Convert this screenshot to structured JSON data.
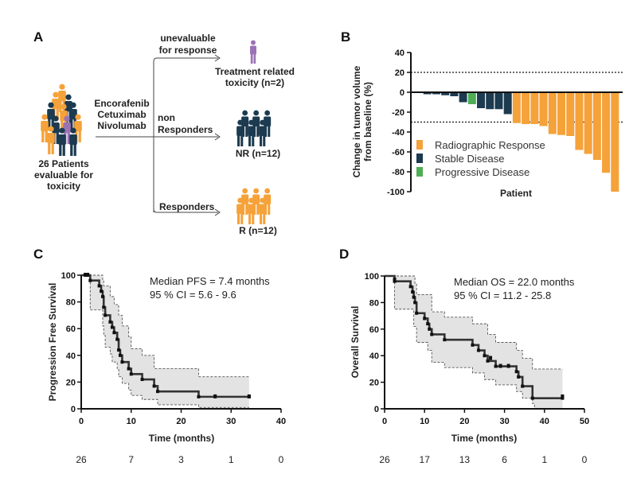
{
  "colors": {
    "orange": "#F5A23A",
    "navy": "#1C3A50",
    "green": "#4FAE55",
    "purple": "#9B73B5",
    "ci_fill": "#E3E3E3"
  },
  "panel_a": {
    "label": "A",
    "left_text": [
      "26 Patients",
      "evaluable for",
      "toxicity"
    ],
    "treatment": [
      "Encorafenib",
      "Cetuximab",
      "Nivolumab"
    ],
    "branch_top": [
      "unevaluable",
      "for response"
    ],
    "branch_mid": [
      "non",
      "Responders"
    ],
    "branch_bottom": "Responders",
    "out_top": [
      "Treatment related",
      "toxicity (n=2)"
    ],
    "out_mid": "NR (n=12)",
    "out_bottom": "R (n=12)",
    "icons": {
      "group": "people-group-icon",
      "tox": "person-icon"
    }
  },
  "chart_data": [
    {
      "panel": "B",
      "type": "bar",
      "ylabel": [
        "Change in tumor volume",
        "from baseline (%)"
      ],
      "xlabel": "Patient",
      "ylim": [
        -100,
        40
      ],
      "yticks": [
        40,
        20,
        0,
        -20,
        -40,
        -60,
        -80,
        -100
      ],
      "reference_lines": [
        20,
        -30
      ],
      "legend": [
        {
          "name": "Radiographic Response",
          "color": "#F5A23A"
        },
        {
          "name": "Stable Disease",
          "color": "#1C3A50"
        },
        {
          "name": "Progressive Disease",
          "color": "#4FAE55"
        }
      ],
      "legend_position": "bottom-left",
      "values": [
        0.5,
        -2,
        -2,
        -3,
        -4,
        -10,
        -12,
        -16,
        -17,
        -17,
        -22,
        -31,
        -32,
        -32,
        -34,
        -42,
        -43,
        -44,
        -58,
        -62,
        -68,
        -81,
        -100
      ],
      "groups": [
        "SD",
        "SD",
        "SD",
        "SD",
        "SD",
        "SD",
        "PD",
        "SD",
        "SD",
        "SD",
        "SD",
        "RR",
        "RR",
        "RR",
        "RR",
        "RR",
        "RR",
        "RR",
        "RR",
        "RR",
        "RR",
        "RR",
        "RR"
      ]
    },
    {
      "panel": "C",
      "type": "line",
      "ylabel": "Progression Free Survival",
      "xlabel": "Time (months)",
      "xlim": [
        0,
        40
      ],
      "ylim": [
        0,
        100
      ],
      "xticks": [
        0,
        10,
        20,
        30,
        40
      ],
      "yticks": [
        0,
        20,
        40,
        60,
        80,
        100
      ],
      "annotation": [
        "Median PFS =  7.4 months",
        "95 % CI = 5.6 - 9.6"
      ],
      "at_risk": [
        "26",
        "7",
        "3",
        "1",
        "0"
      ],
      "survival": [
        [
          0,
          100
        ],
        [
          1.8,
          96
        ],
        [
          3.6,
          92
        ],
        [
          4.0,
          88
        ],
        [
          4.3,
          84
        ],
        [
          4.5,
          76
        ],
        [
          4.8,
          70
        ],
        [
          5.8,
          65
        ],
        [
          6.2,
          61
        ],
        [
          6.6,
          57
        ],
        [
          7.2,
          52
        ],
        [
          7.5,
          44
        ],
        [
          7.8,
          40
        ],
        [
          8.2,
          35
        ],
        [
          9.5,
          30
        ],
        [
          10,
          26
        ],
        [
          12.2,
          22
        ],
        [
          14.6,
          17
        ],
        [
          15.3,
          13
        ],
        [
          23.5,
          9
        ],
        [
          33.6,
          9
        ]
      ],
      "ci_upper": [
        [
          0,
          100
        ],
        [
          3.6,
          100
        ],
        [
          4.3,
          96
        ],
        [
          4.5,
          92
        ],
        [
          5.8,
          84
        ],
        [
          6.6,
          78
        ],
        [
          7.5,
          70
        ],
        [
          8.2,
          62
        ],
        [
          9.5,
          54
        ],
        [
          10,
          45
        ],
        [
          12.2,
          40
        ],
        [
          14.6,
          30
        ],
        [
          23.5,
          24
        ],
        [
          33.6,
          24
        ]
      ],
      "ci_lower": [
        [
          0,
          100
        ],
        [
          1.8,
          74
        ],
        [
          3.6,
          74
        ],
        [
          4.3,
          62
        ],
        [
          4.5,
          55
        ],
        [
          4.8,
          46
        ],
        [
          5.8,
          41
        ],
        [
          6.2,
          35
        ],
        [
          7.2,
          30
        ],
        [
          7.5,
          24
        ],
        [
          8.2,
          19
        ],
        [
          9.5,
          14
        ],
        [
          10,
          10
        ],
        [
          12.2,
          7
        ],
        [
          15.3,
          3
        ],
        [
          23.5,
          1
        ],
        [
          33.6,
          1
        ]
      ],
      "censored": [
        [
          0.8,
          100
        ],
        [
          1.3,
          100
        ],
        [
          26.8,
          9
        ],
        [
          33.6,
          9
        ]
      ]
    },
    {
      "panel": "D",
      "type": "line",
      "ylabel": "Overall Survival",
      "xlabel": "Time (months)",
      "xlim": [
        0,
        50
      ],
      "ylim": [
        0,
        100
      ],
      "xticks": [
        0,
        10,
        20,
        30,
        40,
        50
      ],
      "yticks": [
        0,
        20,
        40,
        60,
        80,
        100
      ],
      "annotation": [
        "Median OS = 22.0 months",
        "95 % CI = 11.2 - 25.8"
      ],
      "at_risk": [
        "26",
        "17",
        "13",
        "6",
        "1",
        "0"
      ],
      "survival": [
        [
          0,
          100
        ],
        [
          2.5,
          96
        ],
        [
          6.5,
          92
        ],
        [
          7,
          88
        ],
        [
          7.3,
          84
        ],
        [
          7.6,
          80
        ],
        [
          8,
          72
        ],
        [
          10,
          68
        ],
        [
          10.8,
          64
        ],
        [
          11.2,
          60
        ],
        [
          11.8,
          56
        ],
        [
          15,
          52
        ],
        [
          22,
          48
        ],
        [
          23.5,
          44
        ],
        [
          25,
          40
        ],
        [
          25.8,
          36
        ],
        [
          27.8,
          32
        ],
        [
          33,
          28
        ],
        [
          33.5,
          24
        ],
        [
          34.5,
          17
        ],
        [
          37,
          8
        ],
        [
          44.5,
          8
        ]
      ],
      "ci_upper": [
        [
          0,
          100
        ],
        [
          6.5,
          100
        ],
        [
          7.6,
          94
        ],
        [
          8,
          86
        ],
        [
          11.8,
          73
        ],
        [
          15,
          69
        ],
        [
          22,
          64
        ],
        [
          25.8,
          56
        ],
        [
          27.8,
          50
        ],
        [
          33,
          44
        ],
        [
          34.5,
          38
        ],
        [
          37,
          30
        ],
        [
          44.5,
          30
        ]
      ],
      "ci_lower": [
        [
          0,
          100
        ],
        [
          2.5,
          75
        ],
        [
          6.5,
          75
        ],
        [
          7.3,
          62
        ],
        [
          8,
          50
        ],
        [
          10.8,
          44
        ],
        [
          11.8,
          35
        ],
        [
          15,
          31
        ],
        [
          22,
          27
        ],
        [
          25,
          22
        ],
        [
          27.8,
          18
        ],
        [
          33,
          13
        ],
        [
          34.5,
          8
        ],
        [
          37,
          4
        ],
        [
          37.5,
          0
        ],
        [
          44.5,
          0
        ]
      ],
      "censored": [
        [
          2.5,
          97
        ],
        [
          26.5,
          38
        ],
        [
          29,
          32
        ],
        [
          31,
          32
        ],
        [
          44.5,
          9
        ]
      ]
    }
  ]
}
